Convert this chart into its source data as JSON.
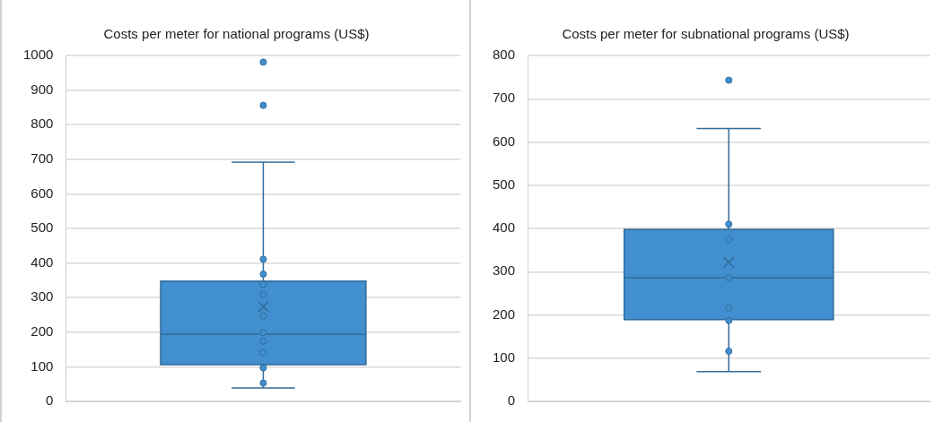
{
  "chart_data": [
    {
      "type": "box",
      "title": "Costs per meter for national programs (US$)",
      "categories": [
        null
      ],
      "color": "#418fce",
      "ylim": [
        0,
        1000
      ],
      "yticks": [
        0,
        100,
        200,
        300,
        400,
        500,
        600,
        700,
        800,
        900,
        1000
      ],
      "grid": "y",
      "tick_labels": "y",
      "marker": "circle",
      "boxes": [
        {
          "low": 39,
          "q1": 106,
          "median": 194,
          "q3": 348,
          "high": 692,
          "mean": 274,
          "outliers": [
            981,
            856,
            411,
            368,
            338,
            310,
            247,
            199,
            174,
            141,
            97,
            53
          ]
        }
      ]
    },
    {
      "type": "box",
      "title": "Costs per meter for subnational programs (US$)",
      "categories": [
        null
      ],
      "color": "#418fce",
      "ylim": [
        0,
        800
      ],
      "yticks": [
        0,
        100,
        200,
        300,
        400,
        500,
        600,
        700,
        800
      ],
      "grid": "y",
      "tick_labels": "y",
      "marker": "circle",
      "boxes": [
        {
          "low": 69,
          "q1": 189,
          "median": 286,
          "q3": 398,
          "high": 631,
          "mean": 322,
          "outliers": [
            743,
            410,
            375,
            286,
            216,
            187,
            116
          ]
        }
      ]
    }
  ]
}
